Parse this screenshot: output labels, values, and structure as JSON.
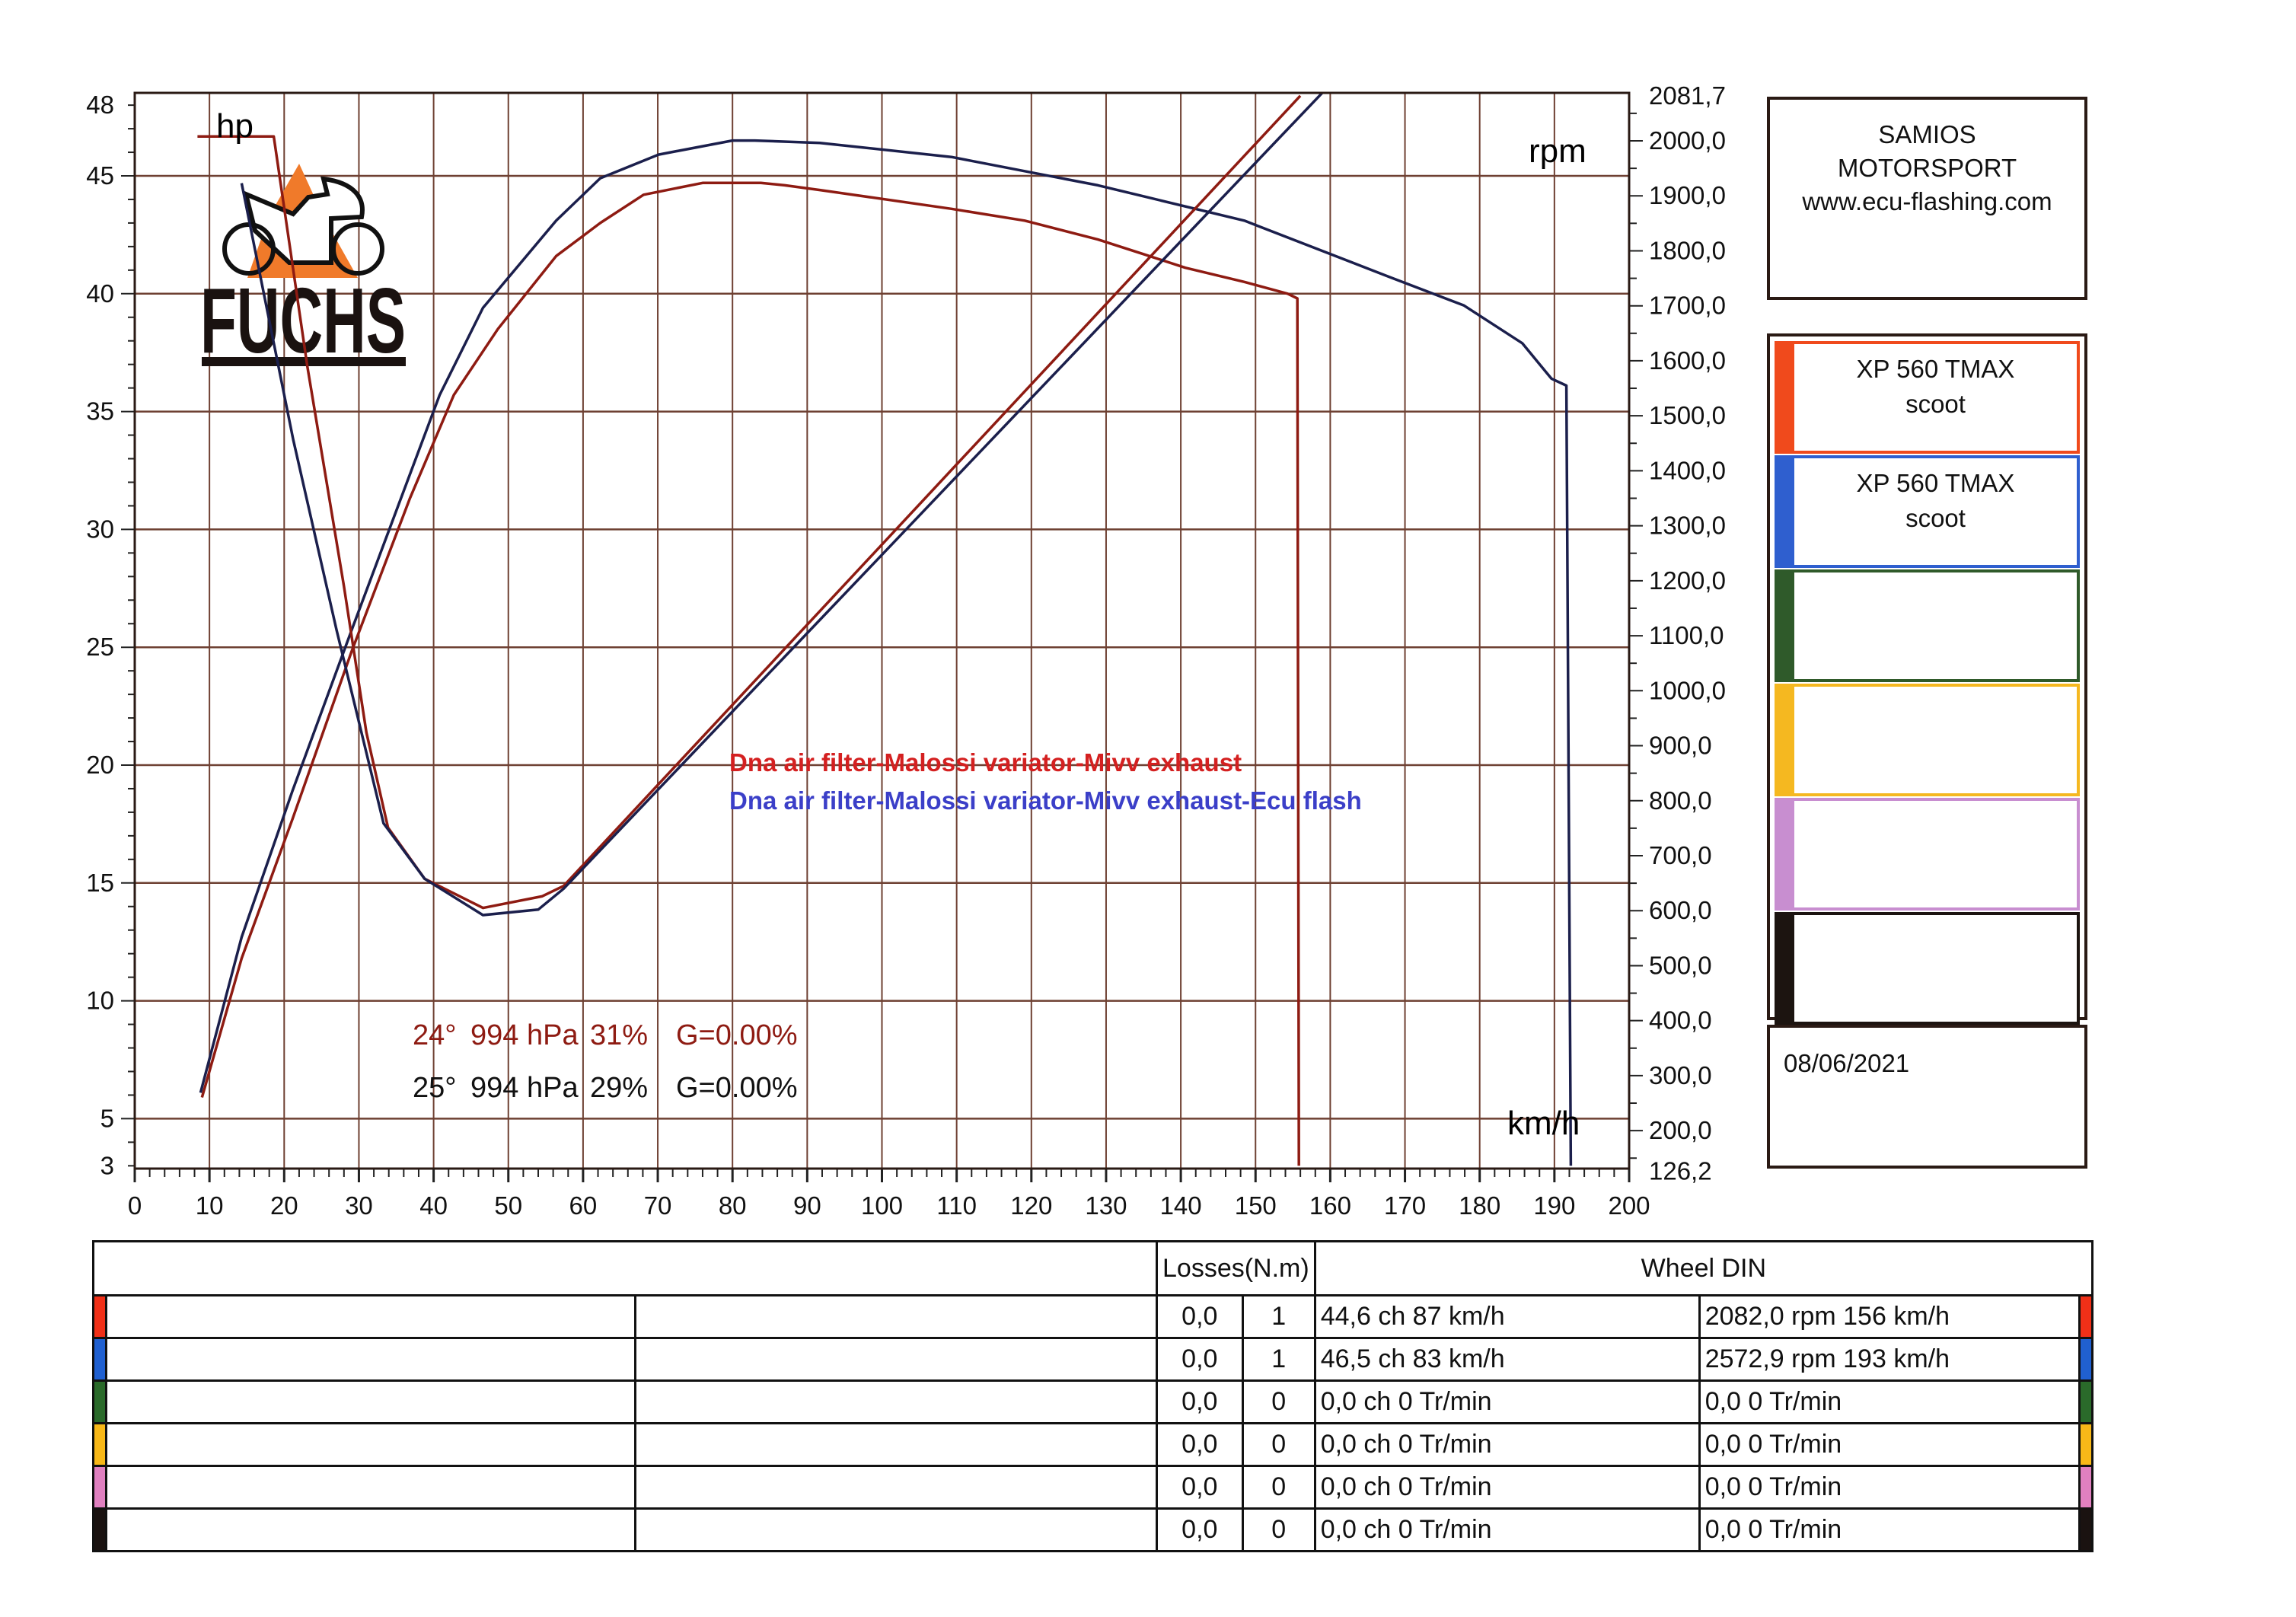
{
  "chart_data": {
    "type": "line",
    "xlabel": "km/h",
    "ylabel_left": "hp",
    "ylabel_right": "rpm",
    "xlim": [
      0,
      200
    ],
    "ylim_left": [
      3,
      48
    ],
    "ylim_right": [
      126.2,
      2081.7
    ],
    "grid": true,
    "x_ticks": [
      "0",
      "10",
      "20",
      "30",
      "40",
      "50",
      "60",
      "70",
      "80",
      "90",
      "100",
      "110",
      "120",
      "130",
      "140",
      "150",
      "160",
      "170",
      "180",
      "190",
      "200"
    ],
    "left_ticks": [
      "48",
      "45",
      "40",
      "35",
      "30",
      "25",
      "20",
      "15",
      "10",
      "5",
      "3"
    ],
    "right_ticks": [
      "2081,7",
      "2000,0",
      "1900,0",
      "1800,0",
      "1700,0",
      "1600,0",
      "1500,0",
      "1400,0",
      "1300,0",
      "1200,0",
      "1100,0",
      "1000,0",
      "900,0",
      "800,0",
      "700,0",
      "600,0",
      "500,0",
      "400,0",
      "300,0",
      "200,0",
      "126,2"
    ],
    "series": [
      {
        "name": "Dna air filter-Malossi variator-Mivv exhaust",
        "kind": "power",
        "axis": "left",
        "color": "#8e1b12",
        "x": [
          9,
          14.3,
          21.1,
          29,
          36.8,
          42.7,
          48.6,
          56.4,
          62.3,
          68.1,
          76,
          83.8,
          87,
          91.7,
          109.3,
          119.1,
          128.9,
          134.8,
          140.6,
          148.5,
          154.3,
          155.6,
          155.8
        ],
        "y": [
          5.9,
          11.8,
          17.7,
          24.8,
          31.3,
          35.7,
          38.5,
          41.6,
          43,
          44.2,
          44.7,
          44.7,
          44.6,
          44.4,
          43.6,
          43.1,
          42.3,
          41.7,
          41.1,
          40.5,
          40,
          39.8,
          3
        ]
      },
      {
        "name": "Dna air filter-Malossi variator-Mivv exhaust-Ecu flash",
        "kind": "power",
        "axis": "left",
        "color": "#1b1f4c",
        "x": [
          8.8,
          14.3,
          21.1,
          29,
          34.9,
          40.8,
          46.6,
          56.4,
          62.3,
          70.1,
          80,
          83,
          91.7,
          109.3,
          128.9,
          148.5,
          168,
          177.9,
          185.7,
          189.6,
          191.6,
          192.2
        ],
        "y": [
          6.1,
          12.7,
          18.9,
          25.7,
          30.7,
          35.7,
          39.4,
          43.1,
          44.9,
          45.9,
          46.5,
          46.5,
          46.4,
          45.8,
          44.6,
          43.1,
          40.7,
          39.5,
          37.9,
          36.4,
          36.1,
          3
        ]
      },
      {
        "name": "rpm red",
        "kind": "rpm",
        "axis": "right",
        "color": "#8e1b12",
        "x": [
          8.4,
          18.6,
          23.1,
          28,
          31,
          33.9,
          38.8,
          46.6,
          54.5,
          57.4,
          156
        ],
        "y": [
          2008,
          2008,
          1590,
          1190,
          924,
          751,
          658,
          605,
          626,
          645,
          2082
        ]
      },
      {
        "name": "rpm blue",
        "kind": "rpm",
        "axis": "right",
        "color": "#1b1f4c",
        "x": [
          14.3,
          21.2,
          27,
          33.3,
          38.8,
          46.6,
          54,
          57.4,
          193
        ],
        "y": [
          1923,
          1457,
          1111,
          759,
          658,
          592,
          602,
          640,
          2572.9
        ]
      }
    ],
    "annotations": {
      "legend_red": "Dna air filter-Malossi variator-Mivv exhaust",
      "legend_blue": "Dna air filter-Malossi variator-Mivv exhaust-Ecu flash",
      "cond_red": [
        "24°",
        "994 hPa",
        "31%",
        "G=0.00%"
      ],
      "cond_black": [
        "25°",
        "994 hPa",
        "29%",
        "G=0.00%"
      ]
    },
    "colors": {
      "red": "#d42020",
      "blue": "#3b3fc8",
      "grid": "#6e4032"
    }
  },
  "logo": {
    "text": "FUCHS"
  },
  "brand": {
    "line1": "SAMIOS",
    "line2": "MOTORSPORT",
    "line3": "www.ecu-flashing.com"
  },
  "legend_rows": [
    {
      "color": "#f04a1c",
      "line1": "XP 560 TMAX",
      "line2": "scoot"
    },
    {
      "color": "#2f5fcf",
      "line1": "XP 560 TMAX",
      "line2": "scoot"
    },
    {
      "color": "#2f5a2a",
      "line1": "",
      "line2": ""
    },
    {
      "color": "#f5b820",
      "line1": "",
      "line2": ""
    },
    {
      "color": "#c88ed0",
      "line1": "",
      "line2": ""
    },
    {
      "color": "#1c1410",
      "line1": "",
      "line2": ""
    }
  ],
  "date": "08/06/2021",
  "table": {
    "header_losses": "Losses(N.m)",
    "header_wheel": "Wheel DIN",
    "rows": [
      {
        "color": "#f03018",
        "loss": "0,0",
        "n": "1",
        "power": "44,6 ch 87 km/h",
        "rpm": "2082,0 rpm 156 km/h"
      },
      {
        "color": "#2060d0",
        "loss": "0,0",
        "n": "1",
        "power": "46,5 ch 83 km/h",
        "rpm": "2572,9 rpm 193 km/h"
      },
      {
        "color": "#2a6a2a",
        "loss": "0,0",
        "n": "0",
        "power": "0,0 ch 0 Tr/min",
        "rpm": "0,0  0 Tr/min"
      },
      {
        "color": "#f8b818",
        "loss": "0,0",
        "n": "0",
        "power": "0,0 ch 0 Tr/min",
        "rpm": "0,0  0 Tr/min"
      },
      {
        "color": "#e080c0",
        "loss": "0,0",
        "n": "0",
        "power": "0,0 ch 0 Tr/min",
        "rpm": "0,0  0 Tr/min"
      },
      {
        "color": "#1a1210",
        "loss": "0,0",
        "n": "0",
        "power": "0,0 ch 0 Tr/min",
        "rpm": "0,0  0 Tr/min"
      }
    ]
  }
}
